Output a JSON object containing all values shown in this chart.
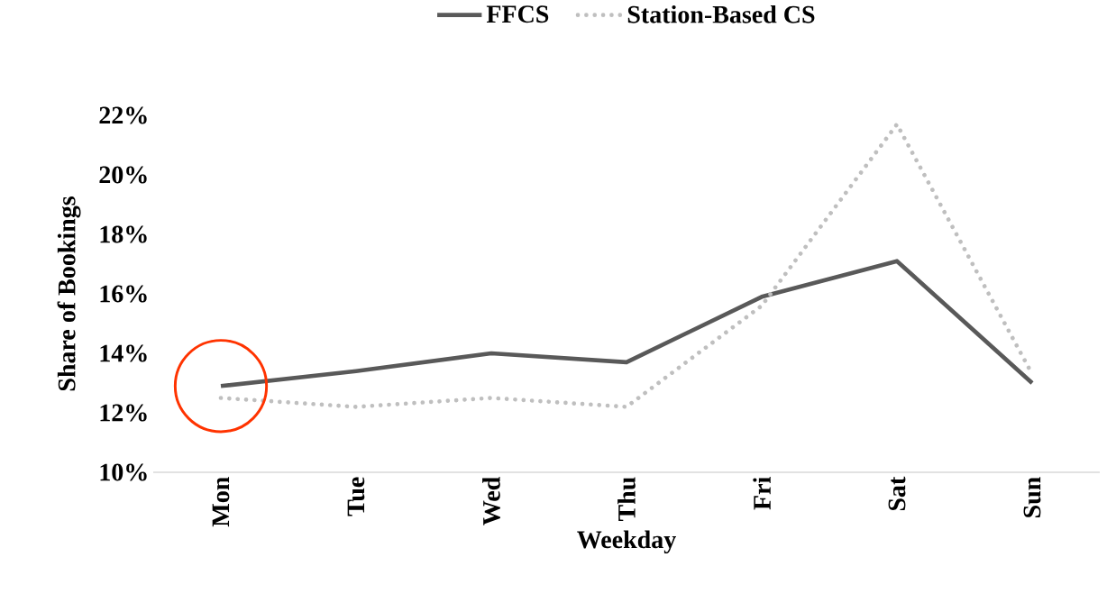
{
  "chart_data": {
    "type": "line",
    "xlabel": "Weekday",
    "ylabel": "Share of Bookings",
    "categories": [
      "Mon",
      "Tue",
      "Wed",
      "Thu",
      "Fri",
      "Sat",
      "Sun"
    ],
    "series": [
      {
        "name": "FFCS",
        "color": "#595959",
        "line_style": "solid",
        "values": [
          12.9,
          13.4,
          14.0,
          13.7,
          15.9,
          17.1,
          13.0
        ]
      },
      {
        "name": "Station-Based CS",
        "color": "#bfbfbf",
        "line_style": "dotted",
        "values": [
          12.5,
          12.2,
          12.5,
          12.2,
          15.6,
          21.7,
          13.3
        ]
      }
    ],
    "ylim": [
      10,
      22
    ],
    "yticks": [
      {
        "value": 10,
        "label": "10%"
      },
      {
        "value": 12,
        "label": "12%"
      },
      {
        "value": 14,
        "label": "14%"
      },
      {
        "value": 16,
        "label": "16%"
      },
      {
        "value": 18,
        "label": "18%"
      },
      {
        "value": 20,
        "label": "20%"
      },
      {
        "value": 22,
        "label": "22%"
      }
    ],
    "grid": false,
    "legend": "top",
    "marker": "none"
  }
}
